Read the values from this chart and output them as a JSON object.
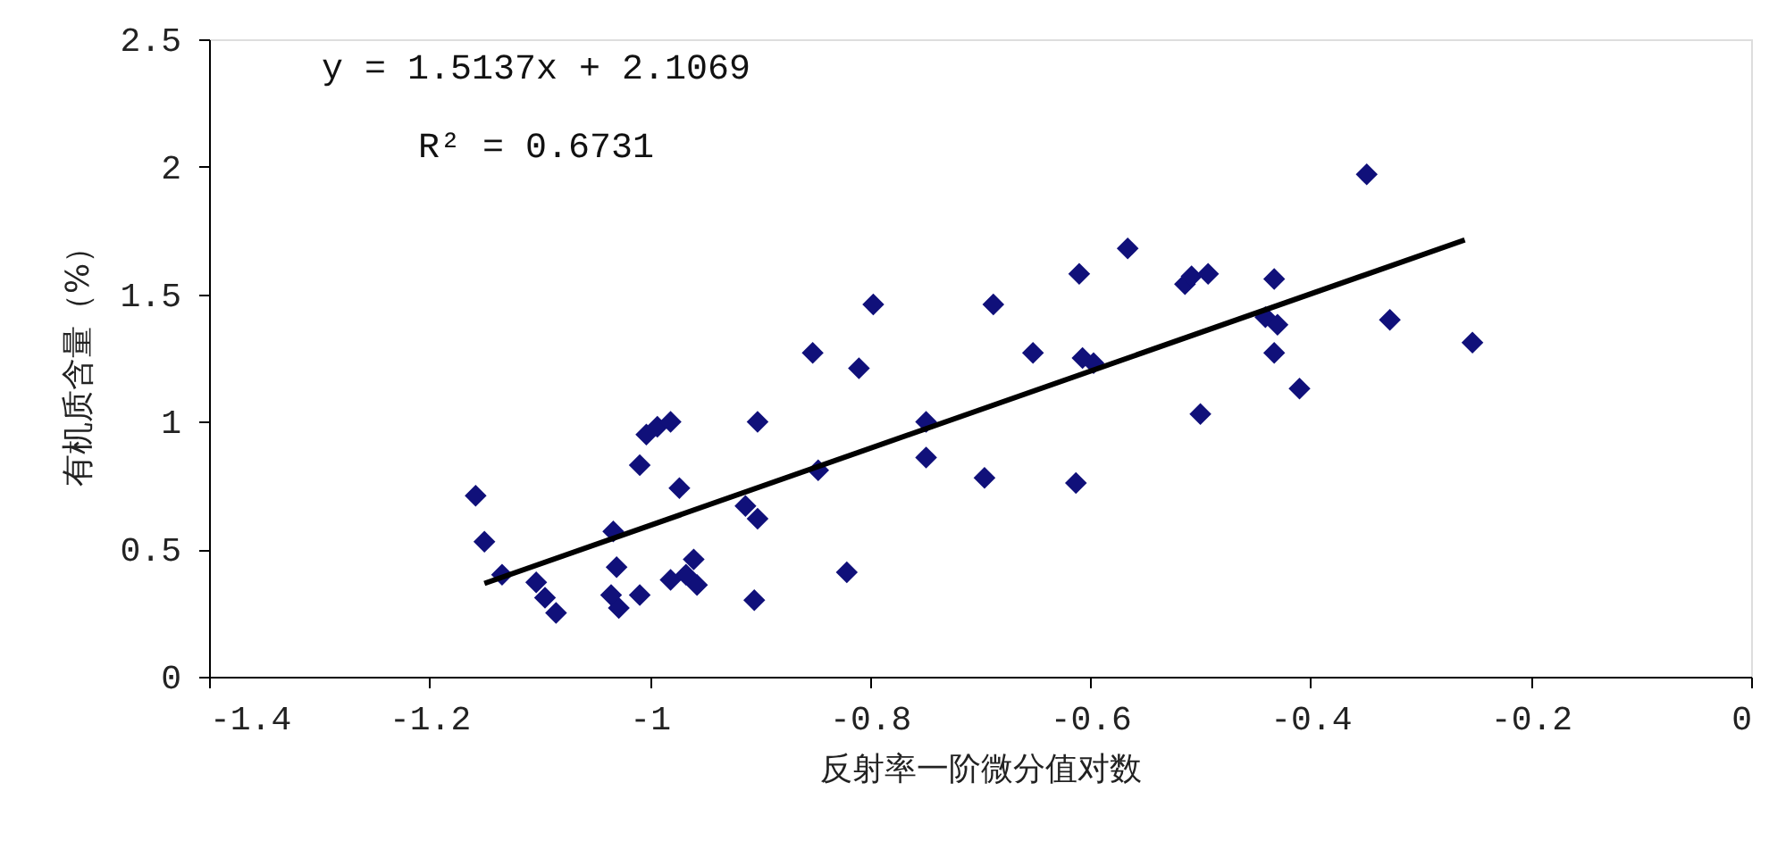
{
  "chart_data": {
    "type": "scatter",
    "xlabel": "反射率一阶微分值对数",
    "ylabel": "有机质含量（%）",
    "annotations": [
      "y = 1.5137x + 2.1069",
      "R² = 0.6731"
    ],
    "xlim": [
      -1.4,
      0
    ],
    "xticks": [
      -1.4,
      -1.2,
      -1,
      -0.8,
      -0.6,
      -0.4,
      -0.2,
      0
    ],
    "ylim": [
      0,
      2.5
    ],
    "yticks": [
      0,
      0.5,
      1,
      1.5,
      2,
      2.5
    ],
    "grid": false,
    "marker": "diamond",
    "series": [
      {
        "type": "scatter",
        "color": "#10107a",
        "x": [
          -1.158,
          -1.15,
          -1.134,
          -1.103,
          -1.095,
          -1.085,
          -1.035,
          -1.033,
          -1.03,
          -1.028,
          -1.009,
          -1.009,
          -1.003,
          -0.993,
          -0.981,
          -0.973,
          -0.981,
          -0.967,
          -0.96,
          -0.957,
          -0.905,
          -0.902,
          -0.913,
          -0.902,
          -0.852,
          -0.847,
          -0.821,
          -0.81,
          -0.797,
          -0.749,
          -0.749,
          -0.696,
          -0.688,
          -0.652,
          -0.613,
          -0.61,
          -0.607,
          -0.597,
          -0.566,
          -0.514,
          -0.508,
          -0.493,
          -0.5,
          -0.441,
          -0.433,
          -0.43,
          -0.433,
          -0.41,
          -0.349,
          -0.328,
          -0.253
        ],
        "values": [
          0.71,
          0.53,
          0.4,
          0.37,
          0.31,
          0.25,
          0.32,
          0.57,
          0.43,
          0.27,
          0.32,
          0.83,
          0.95,
          0.98,
          1.0,
          0.74,
          0.38,
          0.4,
          0.46,
          0.36,
          0.3,
          0.62,
          0.67,
          1.0,
          1.27,
          0.81,
          0.41,
          1.21,
          1.46,
          1.0,
          0.86,
          0.78,
          1.46,
          1.27,
          0.76,
          1.58,
          1.25,
          1.23,
          1.68,
          1.54,
          1.57,
          1.58,
          1.03,
          1.41,
          1.56,
          1.38,
          1.27,
          1.13,
          1.97,
          1.4,
          1.31
        ]
      },
      {
        "type": "line",
        "color": "#000000",
        "marker": "none",
        "line_style": "solid",
        "x": [
          -1.15,
          -0.26
        ],
        "values": [
          0.366,
          1.713
        ]
      }
    ]
  }
}
